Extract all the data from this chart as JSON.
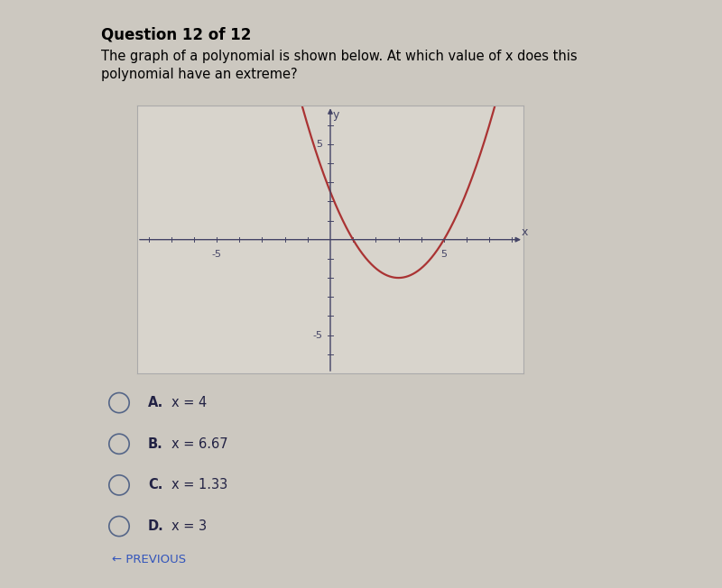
{
  "title": "Question 12 of 12",
  "question_line1": "The graph of a polynomial is shown below. At which value of x does this",
  "question_line2": "polynomial have an extreme?",
  "choices": [
    [
      "A.",
      "x = 4"
    ],
    [
      "B.",
      "x = 6.67"
    ],
    [
      "C.",
      "x = 1.33"
    ],
    [
      "D.",
      "x = 3"
    ]
  ],
  "curve_color": "#aa3333",
  "axis_color": "#444466",
  "background_color": "#ccc8c0",
  "plot_bg_color": "#d8d4cc",
  "xlim": [
    -8.5,
    8.5
  ],
  "ylim": [
    -7,
    7
  ],
  "footer_text": "← PREVIOUS",
  "footer_color": "#3355bb",
  "poly_vertex_x": 3.0,
  "poly_vertex_y": -2.0,
  "poly_a": 0.5
}
